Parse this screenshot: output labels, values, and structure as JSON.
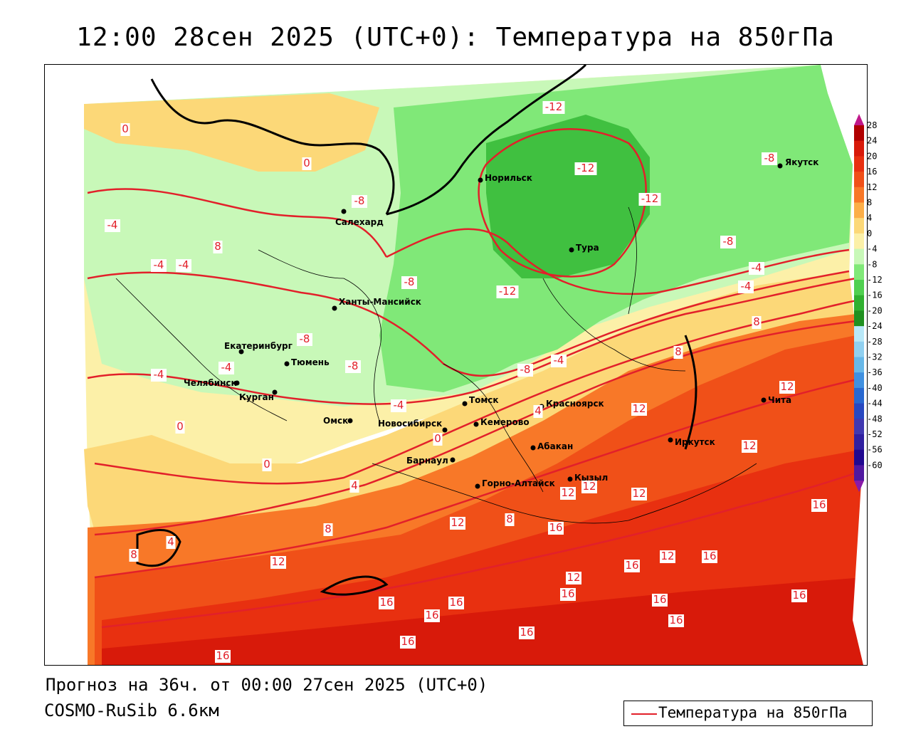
{
  "title": "12:00 28сен 2025 (UTC+0): Температура на 850гПа",
  "footer": {
    "forecast": "Прогноз на 36ч. от 00:00 27сен 2025 (UTC+0)",
    "model": "COSMO-RuSib 6.6км"
  },
  "legend": {
    "label": "Температура на 850гПа",
    "line_color": "#e2202a"
  },
  "colorbar": {
    "ticks": [
      "28",
      "24",
      "20",
      "16",
      "12",
      "8",
      "4",
      "0",
      "-4",
      "-8",
      "-12",
      "-16",
      "-20",
      "-24",
      "-28",
      "-32",
      "-36",
      "-40",
      "-44",
      "-48",
      "-52",
      "-56",
      "-60"
    ],
    "colors": [
      "#b00000",
      "#d81a0a",
      "#e83010",
      "#f05018",
      "#f87828",
      "#fcae48",
      "#fcd878",
      "#fcf0a8",
      "#c8f8b8",
      "#80e878",
      "#50d050",
      "#30b030",
      "#209020",
      "#b8e8f8",
      "#90d0f0",
      "#68b8e8",
      "#4090e0",
      "#2868d0",
      "#2848c0",
      "#4038b0",
      "#3020a0",
      "#200890",
      "#5018a0"
    ]
  },
  "cities": [
    {
      "name": "Якутск"
    },
    {
      "name": "Норильск"
    },
    {
      "name": "Салехард"
    },
    {
      "name": "Тура"
    },
    {
      "name": "Ханты-Мансийск"
    },
    {
      "name": "Екатеринбург"
    },
    {
      "name": "Тюмень"
    },
    {
      "name": "Челябинск"
    },
    {
      "name": "Курган"
    },
    {
      "name": "Томск"
    },
    {
      "name": "Красноярск"
    },
    {
      "name": "Омск"
    },
    {
      "name": "Новосибирск"
    },
    {
      "name": "Кемерово"
    },
    {
      "name": "Абакан"
    },
    {
      "name": "Иркутск"
    },
    {
      "name": "Чита"
    },
    {
      "name": "Барнаул"
    },
    {
      "name": "Кызыл"
    },
    {
      "name": "Горно-Алтайск"
    }
  ],
  "isotherm_labels": [
    {
      "text": "-12"
    },
    {
      "text": "-12"
    },
    {
      "text": "-12"
    },
    {
      "text": "-12"
    },
    {
      "text": "-8"
    },
    {
      "text": "-8"
    },
    {
      "text": "-8"
    },
    {
      "text": "-8"
    },
    {
      "text": "-8"
    },
    {
      "text": "-8"
    },
    {
      "text": "-8"
    },
    {
      "text": "-4"
    },
    {
      "text": "-4"
    },
    {
      "text": "-4"
    },
    {
      "text": "-4"
    },
    {
      "text": "-4"
    },
    {
      "text": "-4"
    },
    {
      "text": "-4"
    },
    {
      "text": "-4"
    },
    {
      "text": "-4"
    },
    {
      "text": "0"
    },
    {
      "text": "0"
    },
    {
      "text": "0"
    },
    {
      "text": "0"
    },
    {
      "text": "0"
    },
    {
      "text": "4"
    },
    {
      "text": "4"
    },
    {
      "text": "4"
    },
    {
      "text": "8"
    },
    {
      "text": "8"
    },
    {
      "text": "8"
    },
    {
      "text": "8"
    },
    {
      "text": "8"
    },
    {
      "text": "8"
    },
    {
      "text": "12"
    },
    {
      "text": "12"
    },
    {
      "text": "12"
    },
    {
      "text": "12"
    },
    {
      "text": "12"
    },
    {
      "text": "12"
    },
    {
      "text": "12"
    },
    {
      "text": "12"
    },
    {
      "text": "12"
    },
    {
      "text": "12"
    },
    {
      "text": "16"
    },
    {
      "text": "16"
    },
    {
      "text": "16"
    },
    {
      "text": "16"
    },
    {
      "text": "16"
    },
    {
      "text": "16"
    },
    {
      "text": "16"
    },
    {
      "text": "16"
    },
    {
      "text": "16"
    },
    {
      "text": "16"
    },
    {
      "text": "16"
    },
    {
      "text": "16"
    },
    {
      "text": "16"
    },
    {
      "text": "16"
    }
  ]
}
